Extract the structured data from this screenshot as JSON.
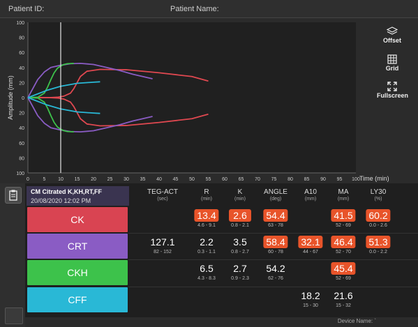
{
  "header": {
    "patient_id_label": "Patient ID:",
    "patient_name_label": "Patient Name:"
  },
  "toolbar": {
    "offset_label": "Offset",
    "grid_label": "Grid",
    "fullscreen_label": "Fullscreen"
  },
  "chart_data": {
    "type": "line",
    "xlabel": "Time (min)",
    "ylabel": "Amplitude (mm)",
    "xlim": [
      0,
      100
    ],
    "ylim": [
      -100,
      100
    ],
    "x_ticks": [
      0,
      5,
      10,
      15,
      20,
      25,
      30,
      35,
      40,
      45,
      50,
      55,
      60,
      65,
      70,
      75,
      80,
      85,
      90,
      95,
      100
    ],
    "y_ticks": [
      100,
      80,
      60,
      40,
      20,
      0,
      -20,
      -40,
      -60,
      -80,
      -100
    ],
    "y_tick_labels": [
      "100",
      "80",
      "60",
      "40",
      "20",
      "0",
      "20",
      "40",
      "60",
      "80",
      "100"
    ],
    "cursor_x": 10,
    "grid": false,
    "series": [
      {
        "color": "#e04850",
        "x": [
          0,
          6.5,
          9,
          11,
          13,
          14,
          15,
          16,
          18,
          22,
          30,
          40,
          50,
          55
        ],
        "y": [
          0,
          0,
          0.5,
          2,
          6,
          12,
          20,
          28,
          35,
          37.5,
          37,
          33,
          28,
          22
        ]
      },
      {
        "color": "#8a5cc4",
        "x": [
          0,
          1,
          2,
          3,
          5,
          7,
          10,
          13,
          16,
          20,
          24,
          28,
          32,
          38
        ],
        "y": [
          0,
          8,
          16,
          24,
          34,
          40,
          43,
          45,
          45.5,
          44,
          40,
          36,
          31,
          25
        ]
      },
      {
        "color": "#3dc24b",
        "x": [
          0,
          3,
          5,
          6,
          7,
          8,
          9,
          10,
          11,
          12,
          14
        ],
        "y": [
          0,
          0.5,
          6,
          14,
          24,
          33,
          39,
          42,
          44,
          45,
          45.5
        ]
      },
      {
        "color": "#29b8d6",
        "x": [
          0,
          3,
          6,
          10,
          15,
          20,
          22
        ],
        "y": [
          0,
          5,
          10,
          15,
          19,
          20.5,
          21
        ]
      }
    ]
  },
  "result": {
    "title": "CM Citrated K,KH,RT,FF",
    "datetime": "20/08/2020 12:02 PM"
  },
  "columns": [
    {
      "name": "TEG-ACT",
      "unit": "(sec)"
    },
    {
      "name": "R",
      "unit": "(min)"
    },
    {
      "name": "K",
      "unit": "(min)"
    },
    {
      "name": "ANGLE",
      "unit": "(deg)"
    },
    {
      "name": "A10",
      "unit": "(mm)"
    },
    {
      "name": "MA",
      "unit": "(mm)"
    },
    {
      "name": "LY30",
      "unit": "(%)"
    }
  ],
  "rows": [
    {
      "label": "CK",
      "color": "#d94452",
      "cells": [
        null,
        {
          "value": "13.4",
          "range": "4.6 - 9.1",
          "flag": true
        },
        {
          "value": "2.6",
          "range": "0.8 - 2.1",
          "flag": true
        },
        {
          "value": "54.4",
          "range": "63 - 78",
          "flag": true
        },
        null,
        {
          "value": "41.5",
          "range": "52 - 69",
          "flag": true
        },
        {
          "value": "60.2",
          "range": "0.0 - 2.6",
          "flag": true
        }
      ]
    },
    {
      "label": "CRT",
      "color": "#8a5cc4",
      "cells": [
        {
          "value": "127.1",
          "range": "82 - 152",
          "flag": false
        },
        {
          "value": "2.2",
          "range": "0.3 - 1.1",
          "flag": false
        },
        {
          "value": "3.5",
          "range": "0.8 - 2.7",
          "flag": false
        },
        {
          "value": "58.4",
          "range": "60 - 78",
          "flag": true
        },
        {
          "value": "32.1",
          "range": "44 - 67",
          "flag": true
        },
        {
          "value": "46.4",
          "range": "52 - 70",
          "flag": true
        },
        {
          "value": "51.3",
          "range": "0.0 - 2.2",
          "flag": true
        }
      ]
    },
    {
      "label": "CKH",
      "color": "#3dc24b",
      "cells": [
        null,
        {
          "value": "6.5",
          "range": "4.3 - 8.3",
          "flag": false
        },
        {
          "value": "2.7",
          "range": "0.9 - 2.3",
          "flag": false
        },
        {
          "value": "54.2",
          "range": "62 - 76",
          "flag": false
        },
        null,
        {
          "value": "45.4",
          "range": "52 - 69",
          "flag": true
        },
        null
      ]
    },
    {
      "label": "CFF",
      "color": "#29b8d6",
      "cells": [
        null,
        null,
        null,
        null,
        {
          "value": "18.2",
          "range": "15 - 30",
          "flag": false
        },
        {
          "value": "21.6",
          "range": "15 - 32",
          "flag": false
        },
        null
      ]
    }
  ],
  "footer": {
    "device_label": "Device Name: `"
  }
}
